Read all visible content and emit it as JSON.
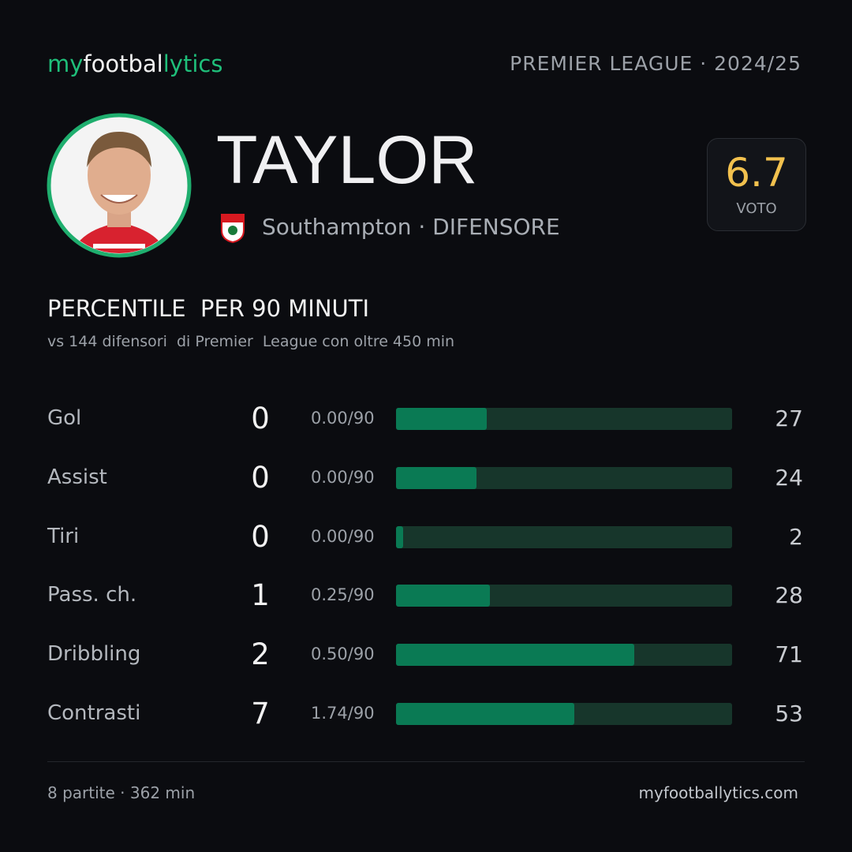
{
  "header": {
    "brand": [
      "my",
      "footbal",
      "lytics"
    ],
    "league": "PREMIER LEAGUE · 2024/25"
  },
  "player": {
    "name": "TAYLOR",
    "club_line": "Southampton · DIFENSORE",
    "rating": 6.7,
    "rating_label": "VOTO"
  },
  "section": {
    "title": "PERCENTILE  PER 90 MINUTI",
    "subtitle": "vs 144 difensori  di Premier  League con oltre 450 min"
  },
  "stats": {
    "xlim": [
      0,
      100
    ],
    "rows": [
      {
        "label": "Gol",
        "total": 0,
        "per90": "0.00/90",
        "percentile": 27
      },
      {
        "label": "Assist",
        "total": 0,
        "per90": "0.00/90",
        "percentile": 24
      },
      {
        "label": "Tiri",
        "total": 0,
        "per90": "0.00/90",
        "percentile": 2
      },
      {
        "label": "Pass. ch.",
        "total": 1,
        "per90": "0.25/90",
        "percentile": 28
      },
      {
        "label": "Dribbling",
        "total": 2,
        "per90": "0.50/90",
        "percentile": 71
      },
      {
        "label": "Contrasti",
        "total": 7,
        "per90": "1.74/90",
        "percentile": 53
      }
    ]
  },
  "footer": {
    "left": "8 partite · 362 min",
    "right": "myfootballytics.com"
  }
}
